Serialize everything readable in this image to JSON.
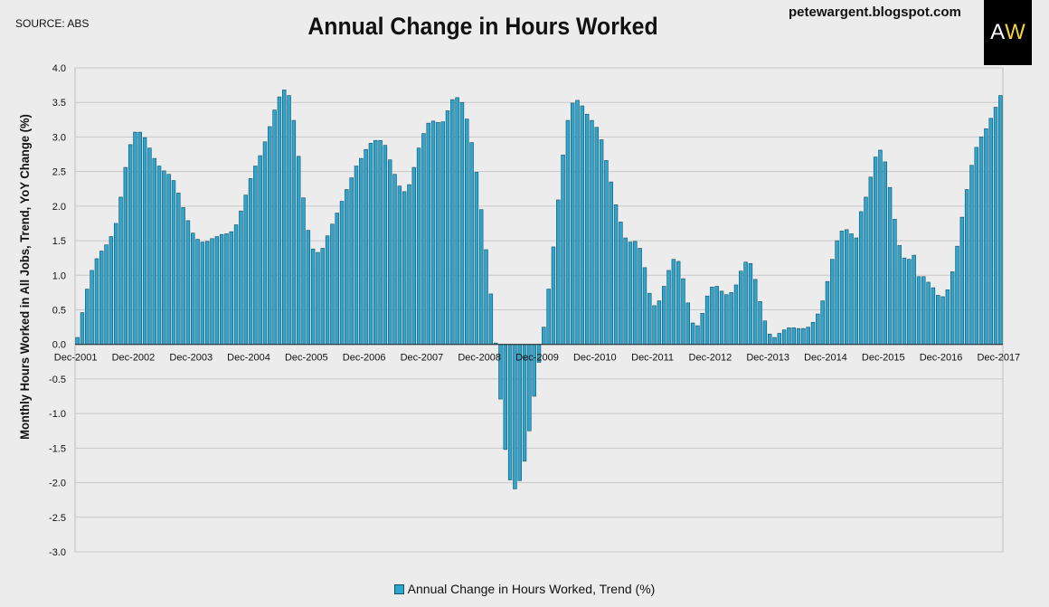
{
  "header": {
    "source": "SOURCE: ABS",
    "title": "Annual Change in Hours Worked",
    "site": "petewargent.blogspot.com",
    "logo_a": "A",
    "logo_w": "W"
  },
  "chart_data": {
    "type": "bar",
    "title": "Annual Change in Hours Worked",
    "ylabel": "Monthly Hours Worked in All Jobs, Trend, YoY Change (%)",
    "xlabel": "",
    "ylim": [
      -3.0,
      4.0
    ],
    "yticks": [
      "4.0",
      "3.5",
      "3.0",
      "2.5",
      "2.0",
      "1.5",
      "1.0",
      "0.5",
      "0.0",
      "-0.5",
      "-1.0",
      "-1.5",
      "-2.0",
      "-2.5",
      "-3.0"
    ],
    "grid": true,
    "legend_position": "bottom",
    "x_start": "Dec-2001",
    "x_end": "Dec-2017",
    "xticks": [
      "Dec-2001",
      "Dec-2002",
      "Dec-2003",
      "Dec-2004",
      "Dec-2005",
      "Dec-2006",
      "Dec-2007",
      "Dec-2008",
      "Dec-2009",
      "Dec-2010",
      "Dec-2011",
      "Dec-2012",
      "Dec-2013",
      "Dec-2014",
      "Dec-2015",
      "Dec-2016",
      "Dec-2017"
    ],
    "bar_color": "#2aa6cf",
    "bar_edge_color": "#1a4f66",
    "series": [
      {
        "name": "Annual Change in Hours Worked, Trend (%)",
        "values": [
          0.1,
          0.46,
          0.8,
          1.07,
          1.24,
          1.35,
          1.44,
          1.56,
          1.75,
          2.13,
          2.56,
          2.89,
          3.07,
          3.07,
          2.99,
          2.84,
          2.69,
          2.58,
          2.51,
          2.46,
          2.37,
          2.19,
          1.98,
          1.79,
          1.61,
          1.52,
          1.48,
          1.49,
          1.53,
          1.56,
          1.59,
          1.6,
          1.63,
          1.73,
          1.93,
          2.16,
          2.4,
          2.58,
          2.73,
          2.93,
          3.15,
          3.39,
          3.58,
          3.68,
          3.6,
          3.24,
          2.72,
          2.12,
          1.65,
          1.38,
          1.33,
          1.39,
          1.57,
          1.74,
          1.9,
          2.07,
          2.24,
          2.41,
          2.58,
          2.69,
          2.82,
          2.91,
          2.95,
          2.95,
          2.88,
          2.67,
          2.46,
          2.29,
          2.21,
          2.31,
          2.56,
          2.84,
          3.05,
          3.2,
          3.23,
          3.21,
          3.22,
          3.38,
          3.54,
          3.57,
          3.5,
          3.26,
          2.92,
          2.49,
          1.95,
          1.37,
          0.73,
          0.02,
          -0.79,
          -1.52,
          -1.96,
          -2.09,
          -1.97,
          -1.69,
          -1.25,
          -0.75,
          -0.26,
          0.25,
          0.8,
          1.41,
          2.09,
          2.74,
          3.24,
          3.49,
          3.53,
          3.45,
          3.33,
          3.24,
          3.14,
          2.96,
          2.66,
          2.35,
          2.02,
          1.77,
          1.54,
          1.48,
          1.49,
          1.39,
          1.11,
          0.74,
          0.56,
          0.63,
          0.84,
          1.07,
          1.23,
          1.2,
          0.95,
          0.6,
          0.31,
          0.27,
          0.45,
          0.7,
          0.83,
          0.84,
          0.77,
          0.72,
          0.75,
          0.86,
          1.06,
          1.19,
          1.17,
          0.94,
          0.62,
          0.34,
          0.15,
          0.1,
          0.16,
          0.21,
          0.24,
          0.24,
          0.23,
          0.23,
          0.25,
          0.32,
          0.44,
          0.63,
          0.91,
          1.23,
          1.5,
          1.64,
          1.66,
          1.6,
          1.54,
          1.92,
          2.13,
          2.42,
          2.71,
          2.81,
          2.64,
          2.27,
          1.81,
          1.43,
          1.25,
          1.23,
          1.29,
          0.98,
          0.98,
          0.9,
          0.82,
          0.71,
          0.69,
          0.79,
          1.05,
          1.42,
          1.84,
          2.24,
          2.59,
          2.85,
          3.0,
          3.12,
          3.27,
          3.43,
          3.6
        ]
      }
    ]
  }
}
